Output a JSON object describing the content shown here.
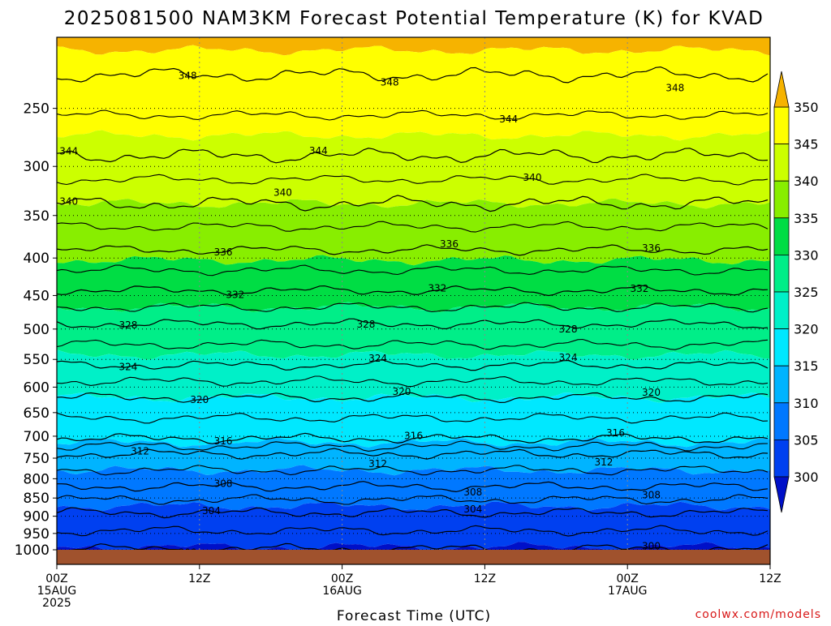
{
  "chart_data": {
    "type": "heatmap",
    "title": "2025081500 NAM3KM Forecast Potential Temperature (K) for KVAD",
    "xlabel": "Forecast Time (UTC)",
    "ylabel": "",
    "watermark": "coolwx.com/models",
    "x_ticks": [
      {
        "hour": 0,
        "lines": [
          "00Z",
          "15AUG",
          "2025"
        ]
      },
      {
        "hour": 12,
        "lines": [
          "12Z"
        ]
      },
      {
        "hour": 24,
        "lines": [
          "00Z",
          "16AUG"
        ]
      },
      {
        "hour": 36,
        "lines": [
          "12Z"
        ]
      },
      {
        "hour": 48,
        "lines": [
          "00Z",
          "17AUG"
        ]
      },
      {
        "hour": 60,
        "lines": [
          "12Z"
        ]
      }
    ],
    "xlim": [
      0,
      60
    ],
    "y_scale": "log",
    "y_ticks": [
      250,
      300,
      350,
      400,
      450,
      500,
      550,
      600,
      650,
      700,
      750,
      800,
      850,
      900,
      950,
      1000
    ],
    "ylim": [
      1000,
      200
    ],
    "grid": "dotted",
    "colorbar": {
      "ticks": [
        350,
        345,
        340,
        335,
        330,
        325,
        320,
        315,
        310,
        305,
        300
      ],
      "levels": [
        {
          "from": 350,
          "to": null,
          "color": "#f6b300"
        },
        {
          "from": 345,
          "to": 350,
          "color": "#ffff00"
        },
        {
          "from": 340,
          "to": 345,
          "color": "#ccff00"
        },
        {
          "from": 335,
          "to": 340,
          "color": "#88ee00"
        },
        {
          "from": 330,
          "to": 335,
          "color": "#00dd44"
        },
        {
          "from": 325,
          "to": 330,
          "color": "#00ee88"
        },
        {
          "from": 320,
          "to": 325,
          "color": "#00f0c8"
        },
        {
          "from": 315,
          "to": 320,
          "color": "#00e8ff"
        },
        {
          "from": 310,
          "to": 315,
          "color": "#00b4ff"
        },
        {
          "from": 305,
          "to": 310,
          "color": "#0078ff"
        },
        {
          "from": 300,
          "to": 305,
          "color": "#0040f0"
        },
        {
          "from": null,
          "to": 300,
          "color": "#0010c8"
        }
      ]
    },
    "surface_color": "#a0522d",
    "contours": [
      {
        "value": 348,
        "pressure": 225,
        "labels": [
          [
            11,
            225
          ],
          [
            28,
            228
          ],
          [
            52,
            235
          ]
        ]
      },
      {
        "value": 344,
        "pressure": 290,
        "labels": [
          [
            1,
            290
          ],
          [
            22,
            288
          ],
          [
            38,
            262
          ]
        ]
      },
      {
        "value": 340,
        "pressure": 337,
        "labels": [
          [
            1,
            337
          ],
          [
            19,
            327
          ],
          [
            40,
            315
          ]
        ]
      },
      {
        "value": 336,
        "pressure": 390,
        "labels": [
          [
            14,
            390
          ],
          [
            33,
            385
          ],
          [
            50,
            385
          ]
        ]
      },
      {
        "value": 332,
        "pressure": 443,
        "labels": [
          [
            15,
            443
          ],
          [
            32,
            440
          ],
          [
            49,
            447
          ]
        ]
      },
      {
        "value": 328,
        "pressure": 492,
        "labels": [
          [
            6,
            490
          ],
          [
            26,
            495
          ],
          [
            43,
            497
          ]
        ]
      },
      {
        "value": 324,
        "pressure": 560,
        "labels": [
          [
            6,
            560
          ],
          [
            27,
            557
          ],
          [
            43,
            555
          ]
        ]
      },
      {
        "value": 320,
        "pressure": 620,
        "labels": [
          [
            12,
            620
          ],
          [
            29,
            615
          ],
          [
            50,
            612
          ]
        ]
      },
      {
        "value": 316,
        "pressure": 705,
        "labels": [
          [
            14,
            705
          ],
          [
            30,
            700
          ],
          [
            47,
            700
          ]
        ]
      },
      {
        "value": 312,
        "pressure": 740,
        "labels": [
          [
            7,
            740
          ],
          [
            27,
            760
          ],
          [
            46,
            755
          ]
        ]
      },
      {
        "value": 308,
        "pressure": 820,
        "labels": [
          [
            14,
            820
          ],
          [
            35,
            835
          ],
          [
            50,
            840
          ]
        ]
      },
      {
        "value": 304,
        "pressure": 890,
        "labels": [
          [
            13,
            890
          ],
          [
            35,
            873
          ]
        ]
      },
      {
        "value": 300,
        "pressure": 997,
        "labels": [
          [
            11,
            997
          ],
          [
            50,
            990
          ]
        ]
      }
    ]
  }
}
